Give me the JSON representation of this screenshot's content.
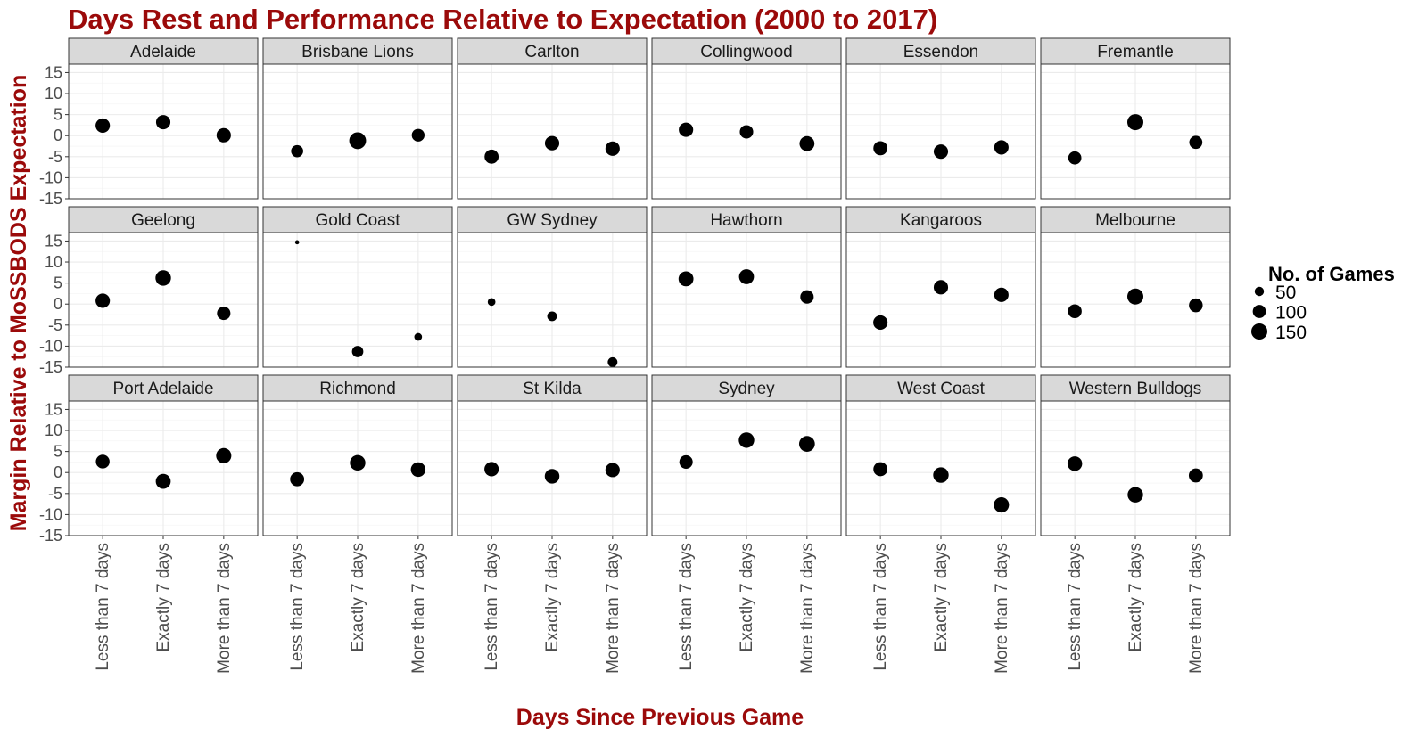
{
  "chart_data": {
    "type": "scatter",
    "title": "Days Rest and Performance Relative to Expectation (2000 to 2017)",
    "xlabel": "Days Since Previous Game",
    "ylabel": "Margin Relative to MoSSBODS Expectation",
    "categories": [
      "Less than 7 days",
      "Exactly 7 days",
      "More than 7 days"
    ],
    "ylim": [
      -15,
      17
    ],
    "yticks": [
      -15,
      -10,
      -5,
      0,
      5,
      10,
      15
    ],
    "grid": true,
    "legend": {
      "title": "No. of Games",
      "position": "right",
      "entries": [
        {
          "label": "50",
          "value": 50
        },
        {
          "label": "100",
          "value": 100
        },
        {
          "label": "150",
          "value": 150
        }
      ]
    },
    "panels": [
      {
        "team": "Adelaide",
        "points": [
          {
            "x": "Less than 7 days",
            "y": 2.4,
            "games": 120
          },
          {
            "x": "Exactly 7 days",
            "y": 3.2,
            "games": 120
          },
          {
            "x": "More than 7 days",
            "y": 0.1,
            "games": 120
          }
        ]
      },
      {
        "team": "Brisbane Lions",
        "points": [
          {
            "x": "Less than 7 days",
            "y": -3.7,
            "games": 85
          },
          {
            "x": "Exactly 7 days",
            "y": -1.2,
            "games": 165
          },
          {
            "x": "More than 7 days",
            "y": 0.1,
            "games": 95
          }
        ]
      },
      {
        "team": "Carlton",
        "points": [
          {
            "x": "Less than 7 days",
            "y": -5.0,
            "games": 115
          },
          {
            "x": "Exactly 7 days",
            "y": -1.8,
            "games": 120
          },
          {
            "x": "More than 7 days",
            "y": -3.1,
            "games": 120
          }
        ]
      },
      {
        "team": "Collingwood",
        "points": [
          {
            "x": "Less than 7 days",
            "y": 1.4,
            "games": 120
          },
          {
            "x": "Exactly 7 days",
            "y": 0.9,
            "games": 105
          },
          {
            "x": "More than 7 days",
            "y": -1.9,
            "games": 130
          }
        ]
      },
      {
        "team": "Essendon",
        "points": [
          {
            "x": "Less than 7 days",
            "y": -3.0,
            "games": 115
          },
          {
            "x": "Exactly 7 days",
            "y": -3.8,
            "games": 120
          },
          {
            "x": "More than 7 days",
            "y": -2.8,
            "games": 120
          }
        ]
      },
      {
        "team": "Fremantle",
        "points": [
          {
            "x": "Less than 7 days",
            "y": -5.3,
            "games": 100
          },
          {
            "x": "Exactly 7 days",
            "y": 3.2,
            "games": 150
          },
          {
            "x": "More than 7 days",
            "y": -1.6,
            "games": 100
          }
        ]
      },
      {
        "team": "Geelong",
        "points": [
          {
            "x": "Less than 7 days",
            "y": 0.8,
            "games": 120
          },
          {
            "x": "Exactly 7 days",
            "y": 6.2,
            "games": 140
          },
          {
            "x": "More than 7 days",
            "y": -2.2,
            "games": 105
          }
        ]
      },
      {
        "team": "Gold Coast",
        "points": [
          {
            "x": "Less than 7 days",
            "y": 14.7,
            "games": 10
          },
          {
            "x": "Exactly 7 days",
            "y": -11.3,
            "games": 75
          },
          {
            "x": "More than 7 days",
            "y": -7.8,
            "games": 35
          }
        ]
      },
      {
        "team": "GW Sydney",
        "points": [
          {
            "x": "Less than 7 days",
            "y": 0.5,
            "games": 35
          },
          {
            "x": "Exactly 7 days",
            "y": -2.9,
            "games": 55
          },
          {
            "x": "More than 7 days",
            "y": -13.8,
            "games": 55
          }
        ]
      },
      {
        "team": "Hawthorn",
        "points": [
          {
            "x": "Less than 7 days",
            "y": 6.0,
            "games": 130
          },
          {
            "x": "Exactly 7 days",
            "y": 6.5,
            "games": 130
          },
          {
            "x": "More than 7 days",
            "y": 1.7,
            "games": 105
          }
        ]
      },
      {
        "team": "Kangaroos",
        "points": [
          {
            "x": "Less than 7 days",
            "y": -4.4,
            "games": 120
          },
          {
            "x": "Exactly 7 days",
            "y": 4.0,
            "games": 120
          },
          {
            "x": "More than 7 days",
            "y": 2.2,
            "games": 120
          }
        ]
      },
      {
        "team": "Melbourne",
        "points": [
          {
            "x": "Less than 7 days",
            "y": -1.7,
            "games": 110
          },
          {
            "x": "Exactly 7 days",
            "y": 1.8,
            "games": 150
          },
          {
            "x": "More than 7 days",
            "y": -0.3,
            "games": 110
          }
        ]
      },
      {
        "team": "Port Adelaide",
        "points": [
          {
            "x": "Less than 7 days",
            "y": 2.6,
            "games": 110
          },
          {
            "x": "Exactly 7 days",
            "y": -2.1,
            "games": 130
          },
          {
            "x": "More than 7 days",
            "y": 4.0,
            "games": 135
          }
        ]
      },
      {
        "team": "Richmond",
        "points": [
          {
            "x": "Less than 7 days",
            "y": -1.6,
            "games": 115
          },
          {
            "x": "Exactly 7 days",
            "y": 2.3,
            "games": 140
          },
          {
            "x": "More than 7 days",
            "y": 0.7,
            "games": 125
          }
        ]
      },
      {
        "team": "St Kilda",
        "points": [
          {
            "x": "Less than 7 days",
            "y": 0.8,
            "games": 120
          },
          {
            "x": "Exactly 7 days",
            "y": -0.9,
            "games": 125
          },
          {
            "x": "More than 7 days",
            "y": 0.6,
            "games": 120
          }
        ]
      },
      {
        "team": "Sydney",
        "points": [
          {
            "x": "Less than 7 days",
            "y": 2.5,
            "games": 105
          },
          {
            "x": "Exactly 7 days",
            "y": 7.7,
            "games": 140
          },
          {
            "x": "More than 7 days",
            "y": 6.8,
            "games": 145
          }
        ]
      },
      {
        "team": "West Coast",
        "points": [
          {
            "x": "Less than 7 days",
            "y": 0.8,
            "games": 115
          },
          {
            "x": "Exactly 7 days",
            "y": -0.6,
            "games": 140
          },
          {
            "x": "More than 7 days",
            "y": -7.7,
            "games": 135
          }
        ]
      },
      {
        "team": "Western Bulldogs",
        "points": [
          {
            "x": "Less than 7 days",
            "y": 2.1,
            "games": 125
          },
          {
            "x": "Exactly 7 days",
            "y": -5.3,
            "games": 140
          },
          {
            "x": "More than 7 days",
            "y": -0.7,
            "games": 115
          }
        ]
      }
    ]
  }
}
